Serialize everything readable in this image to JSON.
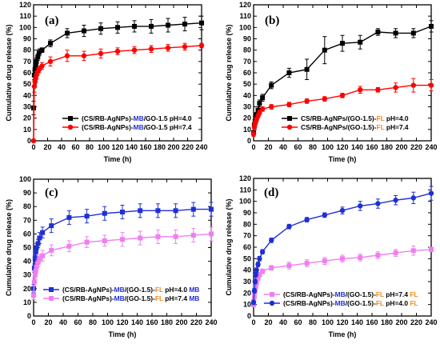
{
  "chart_data": [
    {
      "panel": "(a)",
      "type": "line",
      "xlabel": "Time (h)",
      "ylabel": "Cumulative drug release (%)",
      "xlim": [
        0,
        240
      ],
      "ylim": [
        0,
        120
      ],
      "xticks": [
        0,
        20,
        40,
        60,
        80,
        100,
        120,
        140,
        160,
        180,
        200,
        220,
        240
      ],
      "yticks": [
        0,
        10,
        20,
        30,
        40,
        50,
        60,
        70,
        80,
        90,
        100,
        110,
        120
      ],
      "grid": false,
      "legend": "bottom-right",
      "series": [
        {
          "label_parts": [
            {
              "t": "(CS/RB-AgNPs)-",
              "c": "#000000"
            },
            {
              "t": "MB",
              "c": "#1f2fd6"
            },
            {
              "t": "/GO-1.5 pH=4.0",
              "c": "#000000"
            }
          ],
          "color": "#000000",
          "marker": "square",
          "x": [
            0,
            1,
            2,
            3,
            4,
            6,
            8,
            12,
            24,
            48,
            72,
            96,
            120,
            144,
            168,
            192,
            216,
            240
          ],
          "y": [
            29,
            58,
            63,
            67,
            70,
            74,
            78,
            80,
            86,
            95,
            97,
            99,
            100,
            101,
            101,
            102,
            103,
            104
          ],
          "err": [
            6,
            4,
            3,
            3,
            3,
            3,
            3,
            2,
            3,
            4,
            5,
            5,
            5,
            5,
            6,
            6,
            6,
            6
          ]
        },
        {
          "label_parts": [
            {
              "t": "(CS/RB-AgNPs)-",
              "c": "#000000"
            },
            {
              "t": "MB",
              "c": "#1f2fd6"
            },
            {
              "t": "/GO-1.5 pH=7.4",
              "c": "#000000"
            }
          ],
          "color": "#ff0000",
          "marker": "circle",
          "x": [
            0,
            1,
            2,
            3,
            4,
            6,
            8,
            12,
            24,
            48,
            72,
            96,
            120,
            144,
            168,
            192,
            216,
            240
          ],
          "y": [
            0,
            48,
            52,
            55,
            58,
            61,
            63,
            66,
            70,
            75,
            75,
            77,
            79,
            80,
            81,
            82,
            83,
            84
          ],
          "err": [
            40,
            5,
            4,
            3,
            3,
            3,
            3,
            3,
            4,
            5,
            4,
            4,
            3,
            3,
            3,
            3,
            3,
            2
          ]
        }
      ]
    },
    {
      "panel": "(b)",
      "type": "line",
      "xlabel": "Time (h)",
      "ylabel": "Cumulative drug release (%)",
      "xlim": [
        0,
        240
      ],
      "ylim": [
        0,
        120
      ],
      "xticks": [
        0,
        20,
        40,
        60,
        80,
        100,
        120,
        140,
        160,
        180,
        200,
        220,
        240
      ],
      "yticks": [
        0,
        10,
        20,
        30,
        40,
        50,
        60,
        70,
        80,
        90,
        100,
        110,
        120
      ],
      "grid": false,
      "legend": "bottom-right",
      "series": [
        {
          "label_parts": [
            {
              "t": "CS/RB-AgNPs/(GO-1.5)-",
              "c": "#000000"
            },
            {
              "t": "FL",
              "c": "#f58a1f"
            },
            {
              "t": " pH=4.0",
              "c": "#000000"
            }
          ],
          "color": "#000000",
          "marker": "square",
          "x": [
            0,
            1,
            2,
            3,
            4,
            6,
            8,
            12,
            24,
            48,
            72,
            96,
            120,
            144,
            168,
            192,
            216,
            240
          ],
          "y": [
            7,
            14,
            17,
            20,
            23,
            27,
            33,
            38,
            49,
            60,
            63,
            80,
            86,
            87,
            96,
            95,
            95,
            101
          ],
          "err": [
            2,
            2,
            2,
            2,
            2,
            3,
            3,
            3,
            3,
            4,
            9,
            12,
            7,
            6,
            3,
            4,
            4,
            5
          ]
        },
        {
          "label_parts": [
            {
              "t": "CS/RB-AgNPs/(GO-1.5)-",
              "c": "#000000"
            },
            {
              "t": "FL",
              "c": "#f58a1f"
            },
            {
              "t": " pH=7.4",
              "c": "#000000"
            }
          ],
          "color": "#ff0000",
          "marker": "circle",
          "x": [
            0,
            1,
            2,
            3,
            4,
            6,
            8,
            12,
            24,
            48,
            72,
            96,
            120,
            144,
            168,
            192,
            216,
            240
          ],
          "y": [
            6,
            12,
            15,
            17,
            19,
            22,
            25,
            28,
            30,
            32,
            35,
            37,
            40,
            45,
            45,
            47,
            49,
            49
          ],
          "err": [
            2,
            2,
            2,
            2,
            2,
            2,
            2,
            2,
            2,
            2,
            2,
            2,
            2,
            3,
            2,
            4,
            6,
            5
          ]
        }
      ]
    },
    {
      "panel": "(c)",
      "type": "line",
      "xlabel": "Time (h)",
      "ylabel": "Cumulative drug release (%)",
      "xlim": [
        0,
        240
      ],
      "ylim": [
        0,
        100
      ],
      "xticks": [
        0,
        20,
        40,
        60,
        80,
        100,
        120,
        140,
        160,
        180,
        200,
        220,
        240
      ],
      "yticks": [
        0,
        10,
        20,
        30,
        40,
        50,
        60,
        70,
        80,
        90,
        100
      ],
      "grid": false,
      "legend": "bottom-right",
      "series": [
        {
          "label_parts": [
            {
              "t": "(CS/RB-AgNPs)-",
              "c": "#000000"
            },
            {
              "t": "MB",
              "c": "#1f2fd6"
            },
            {
              "t": "/(GO-1.5)-",
              "c": "#000000"
            },
            {
              "t": "FL",
              "c": "#f58a1f"
            },
            {
              "t": " pH=4.0 ",
              "c": "#000000"
            },
            {
              "t": "MB",
              "c": "#1f2fd6"
            }
          ],
          "color": "#1f2fd6",
          "marker": "square",
          "x": [
            0,
            1,
            2,
            3,
            4,
            6,
            8,
            12,
            24,
            48,
            72,
            96,
            120,
            144,
            168,
            192,
            216,
            240
          ],
          "y": [
            20,
            35,
            42,
            47,
            50,
            53,
            57,
            61,
            66,
            72,
            73,
            75,
            76,
            77,
            77,
            77,
            78,
            78
          ],
          "err": [
            3,
            3,
            3,
            3,
            3,
            3,
            4,
            4,
            5,
            5,
            5,
            5,
            5,
            5,
            5,
            5,
            5,
            5
          ]
        },
        {
          "label_parts": [
            {
              "t": "(CS/RB-AgNPs)-",
              "c": "#000000"
            },
            {
              "t": "MB",
              "c": "#1f2fd6"
            },
            {
              "t": "/(GO-1.5)-",
              "c": "#000000"
            },
            {
              "t": "FL",
              "c": "#f58a1f"
            },
            {
              "t": " pH=7.4 ",
              "c": "#000000"
            },
            {
              "t": "MB",
              "c": "#1f2fd6"
            }
          ],
          "color": "#f07ef0",
          "marker": "square",
          "x": [
            0,
            1,
            2,
            3,
            4,
            6,
            8,
            12,
            24,
            48,
            72,
            96,
            120,
            144,
            168,
            192,
            216,
            240
          ],
          "y": [
            15,
            25,
            30,
            33,
            36,
            39,
            42,
            44,
            48,
            51,
            54,
            55,
            56,
            57,
            58,
            58,
            59,
            60
          ],
          "err": [
            3,
            3,
            3,
            3,
            3,
            3,
            3,
            4,
            4,
            4,
            4,
            4,
            5,
            5,
            5,
            5,
            5,
            5
          ]
        }
      ]
    },
    {
      "panel": "(d)",
      "type": "line",
      "xlabel": "Time (h)",
      "ylabel": "Cumulative drug release (%)",
      "xlim": [
        0,
        240
      ],
      "ylim": [
        0,
        120
      ],
      "xticks": [
        0,
        20,
        40,
        60,
        80,
        100,
        120,
        140,
        160,
        180,
        200,
        220,
        240
      ],
      "yticks": [
        0,
        10,
        20,
        30,
        40,
        50,
        60,
        70,
        80,
        90,
        100,
        110,
        120
      ],
      "grid": false,
      "legend": "bottom-right",
      "series": [
        {
          "label_parts": [
            {
              "t": "(CS/RB-AgNPs)-",
              "c": "#000000"
            },
            {
              "t": "MB",
              "c": "#1f2fd6"
            },
            {
              "t": "/(GO-1.5)-",
              "c": "#000000"
            },
            {
              "t": "FL",
              "c": "#f58a1f"
            },
            {
              "t": " pH=7.4 ",
              "c": "#000000"
            },
            {
              "t": "FL",
              "c": "#f58a1f"
            }
          ],
          "color": "#f07ef0",
          "marker": "square",
          "x": [
            0,
            1,
            2,
            3,
            4,
            6,
            8,
            12,
            24,
            48,
            72,
            96,
            120,
            144,
            168,
            192,
            216,
            240
          ],
          "y": [
            10,
            17,
            22,
            26,
            29,
            33,
            36,
            39,
            42,
            44,
            46,
            48,
            50,
            51,
            53,
            55,
            57,
            58
          ],
          "err": [
            2,
            2,
            2,
            2,
            2,
            2,
            2,
            2,
            2,
            3,
            3,
            3,
            3,
            3,
            3,
            3,
            4,
            2
          ]
        },
        {
          "label_parts": [
            {
              "t": "(CS/RB-AgNPs)-",
              "c": "#000000"
            },
            {
              "t": "MB",
              "c": "#1f2fd6"
            },
            {
              "t": "/(GO-1.5)-",
              "c": "#000000"
            },
            {
              "t": "FL",
              "c": "#f58a1f"
            },
            {
              "t": " pH=4.0 ",
              "c": "#000000"
            },
            {
              "t": "FL",
              "c": "#f58a1f"
            }
          ],
          "color": "#1f2fd6",
          "marker": "circle",
          "x": [
            0,
            1,
            2,
            3,
            4,
            6,
            8,
            12,
            24,
            48,
            72,
            96,
            120,
            144,
            168,
            192,
            216,
            240
          ],
          "y": [
            12,
            22,
            30,
            36,
            40,
            45,
            50,
            56,
            66,
            78,
            84,
            88,
            92,
            96,
            98,
            101,
            103,
            107
          ],
          "err": [
            2,
            2,
            2,
            2,
            2,
            2,
            2,
            2,
            2,
            2,
            2,
            2,
            3,
            4,
            4,
            4,
            5,
            6
          ]
        }
      ]
    }
  ]
}
